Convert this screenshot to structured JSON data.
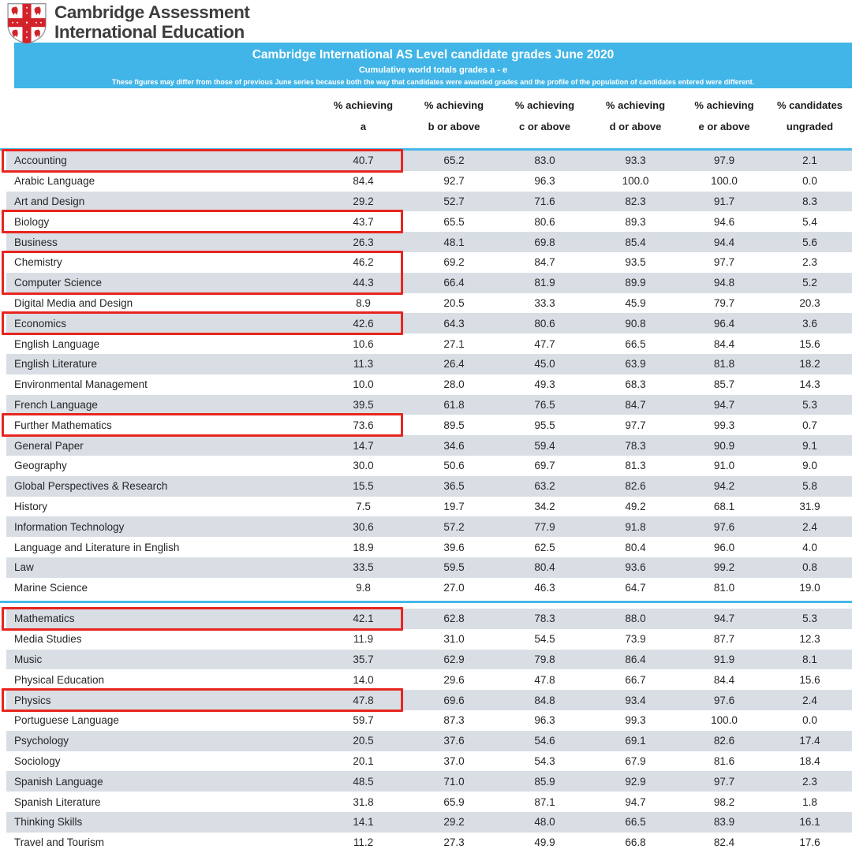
{
  "logo": {
    "line1": "Cambridge Assessment",
    "line2": "International Education"
  },
  "banner": {
    "title": "Cambridge International AS Level candidate grades June 2020",
    "subtitle": "Cumulative world totals grades a - e",
    "note": "These figures may differ from those of previous June series because both the way that candidates were awarded grades and the profile of the population of candidates entered were different."
  },
  "colors": {
    "banner_bg": "#41b5e7",
    "stripe": "#d8dee4",
    "divider": "#45b8e8",
    "highlight": "#e8251f",
    "crest_red": "#d2232a",
    "text": "#262626"
  },
  "table": {
    "column_headers": [
      {
        "line1": "% achieving",
        "line2": "a"
      },
      {
        "line1": "% achieving",
        "line2": "b or above"
      },
      {
        "line1": "% achieving",
        "line2": "c or above"
      },
      {
        "line1": "% achieving",
        "line2": "d or above"
      },
      {
        "line1": "% achieving",
        "line2": "e or above"
      },
      {
        "line1": "% candidates",
        "line2": "ungraded"
      }
    ],
    "rows": [
      {
        "subject": "Accounting",
        "values": [
          "40.7",
          "65.2",
          "83.0",
          "93.3",
          "97.9",
          "2.1"
        ]
      },
      {
        "subject": "Arabic Language",
        "values": [
          "84.4",
          "92.7",
          "96.3",
          "100.0",
          "100.0",
          "0.0"
        ]
      },
      {
        "subject": "Art and Design",
        "values": [
          "29.2",
          "52.7",
          "71.6",
          "82.3",
          "91.7",
          "8.3"
        ]
      },
      {
        "subject": "Biology",
        "values": [
          "43.7",
          "65.5",
          "80.6",
          "89.3",
          "94.6",
          "5.4"
        ]
      },
      {
        "subject": "Business",
        "values": [
          "26.3",
          "48.1",
          "69.8",
          "85.4",
          "94.4",
          "5.6"
        ]
      },
      {
        "subject": "Chemistry",
        "values": [
          "46.2",
          "69.2",
          "84.7",
          "93.5",
          "97.7",
          "2.3"
        ]
      },
      {
        "subject": "Computer Science",
        "values": [
          "44.3",
          "66.4",
          "81.9",
          "89.9",
          "94.8",
          "5.2"
        ]
      },
      {
        "subject": "Digital Media and Design",
        "values": [
          "8.9",
          "20.5",
          "33.3",
          "45.9",
          "79.7",
          "20.3"
        ]
      },
      {
        "subject": "Economics",
        "values": [
          "42.6",
          "64.3",
          "80.6",
          "90.8",
          "96.4",
          "3.6"
        ]
      },
      {
        "subject": "English Language",
        "values": [
          "10.6",
          "27.1",
          "47.7",
          "66.5",
          "84.4",
          "15.6"
        ]
      },
      {
        "subject": "English Literature",
        "values": [
          "11.3",
          "26.4",
          "45.0",
          "63.9",
          "81.8",
          "18.2"
        ]
      },
      {
        "subject": "Environmental Management",
        "values": [
          "10.0",
          "28.0",
          "49.3",
          "68.3",
          "85.7",
          "14.3"
        ]
      },
      {
        "subject": "French Language",
        "values": [
          "39.5",
          "61.8",
          "76.5",
          "84.7",
          "94.7",
          "5.3"
        ]
      },
      {
        "subject": "Further Mathematics",
        "values": [
          "73.6",
          "89.5",
          "95.5",
          "97.7",
          "99.3",
          "0.7"
        ]
      },
      {
        "subject": "General Paper",
        "values": [
          "14.7",
          "34.6",
          "59.4",
          "78.3",
          "90.9",
          "9.1"
        ]
      },
      {
        "subject": "Geography",
        "values": [
          "30.0",
          "50.6",
          "69.7",
          "81.3",
          "91.0",
          "9.0"
        ]
      },
      {
        "subject": "Global Perspectives & Research",
        "values": [
          "15.5",
          "36.5",
          "63.2",
          "82.6",
          "94.2",
          "5.8"
        ]
      },
      {
        "subject": "History",
        "values": [
          "7.5",
          "19.7",
          "34.2",
          "49.2",
          "68.1",
          "31.9"
        ]
      },
      {
        "subject": "Information Technology",
        "values": [
          "30.6",
          "57.2",
          "77.9",
          "91.8",
          "97.6",
          "2.4"
        ]
      },
      {
        "subject": "Language and Literature in English",
        "values": [
          "18.9",
          "39.6",
          "62.5",
          "80.4",
          "96.0",
          "4.0"
        ]
      },
      {
        "subject": "Law",
        "values": [
          "33.5",
          "59.5",
          "80.4",
          "93.6",
          "99.2",
          "0.8"
        ]
      },
      {
        "subject": "Marine Science",
        "values": [
          "9.8",
          "27.0",
          "46.3",
          "64.7",
          "81.0",
          "19.0"
        ]
      },
      {
        "subject": "Mathematics",
        "values": [
          "42.1",
          "62.8",
          "78.3",
          "88.0",
          "94.7",
          "5.3"
        ]
      },
      {
        "subject": "Media Studies",
        "values": [
          "11.9",
          "31.0",
          "54.5",
          "73.9",
          "87.7",
          "12.3"
        ]
      },
      {
        "subject": "Music",
        "values": [
          "35.7",
          "62.9",
          "79.8",
          "86.4",
          "91.9",
          "8.1"
        ]
      },
      {
        "subject": "Physical Education",
        "values": [
          "14.0",
          "29.6",
          "47.8",
          "66.7",
          "84.4",
          "15.6"
        ]
      },
      {
        "subject": "Physics",
        "values": [
          "47.8",
          "69.6",
          "84.8",
          "93.4",
          "97.6",
          "2.4"
        ]
      },
      {
        "subject": "Portuguese Language",
        "values": [
          "59.7",
          "87.3",
          "96.3",
          "99.3",
          "100.0",
          "0.0"
        ]
      },
      {
        "subject": "Psychology",
        "values": [
          "20.5",
          "37.6",
          "54.6",
          "69.1",
          "82.6",
          "17.4"
        ]
      },
      {
        "subject": "Sociology",
        "values": [
          "20.1",
          "37.0",
          "54.3",
          "67.9",
          "81.6",
          "18.4"
        ]
      },
      {
        "subject": "Spanish Language",
        "values": [
          "48.5",
          "71.0",
          "85.9",
          "92.9",
          "97.7",
          "2.3"
        ]
      },
      {
        "subject": "Spanish Literature",
        "values": [
          "31.8",
          "65.9",
          "87.1",
          "94.7",
          "98.2",
          "1.8"
        ]
      },
      {
        "subject": "Thinking Skills",
        "values": [
          "14.1",
          "29.2",
          "48.0",
          "66.5",
          "83.9",
          "16.1"
        ]
      },
      {
        "subject": "Travel and Tourism",
        "values": [
          "11.2",
          "27.3",
          "49.9",
          "66.8",
          "82.4",
          "17.6"
        ]
      }
    ],
    "section_break_after": "Marine Science",
    "highlights": [
      [
        "Accounting"
      ],
      [
        "Biology"
      ],
      [
        "Chemistry",
        "Computer Science"
      ],
      [
        "Economics"
      ],
      [
        "Further Mathematics"
      ],
      [
        "Mathematics"
      ],
      [
        "Physics"
      ]
    ]
  }
}
